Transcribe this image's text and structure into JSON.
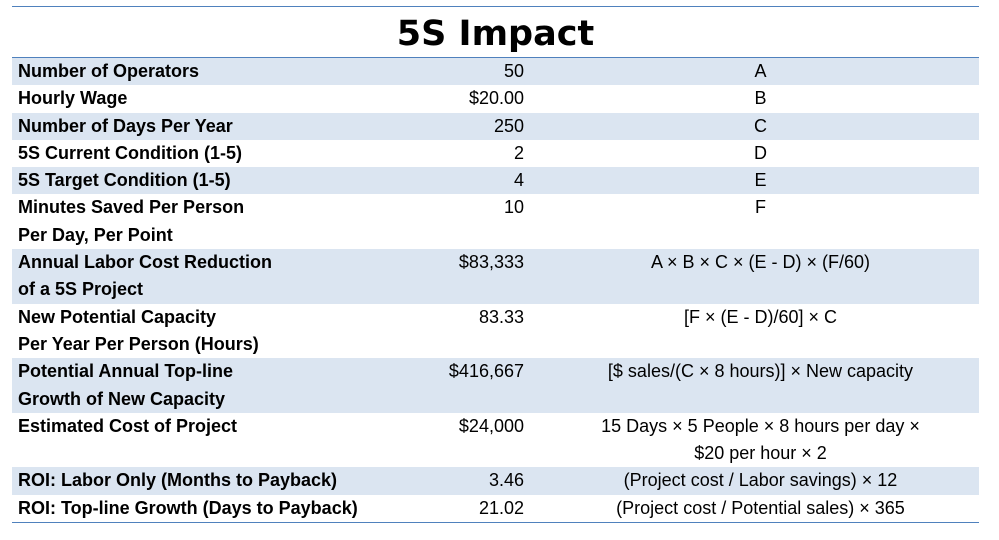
{
  "title": "5S Impact",
  "rows": [
    {
      "label1": "Number of Operators",
      "label2": "",
      "value": "50",
      "formula1": "A",
      "formula2": ""
    },
    {
      "label1": "Hourly Wage",
      "label2": "",
      "value": "$20.00",
      "formula1": "B",
      "formula2": ""
    },
    {
      "label1": "Number of Days Per Year",
      "label2": "",
      "value": "250",
      "formula1": "C",
      "formula2": ""
    },
    {
      "label1": "5S Current Condition (1-5)",
      "label2": "",
      "value": "2",
      "formula1": "D",
      "formula2": ""
    },
    {
      "label1": "5S Target Condition (1-5)",
      "label2": "",
      "value": "4",
      "formula1": "E",
      "formula2": ""
    },
    {
      "label1": "Minutes Saved Per Person",
      "label2": "Per Day, Per Point",
      "value": "10",
      "formula1": "F",
      "formula2": ""
    },
    {
      "label1": "Annual Labor Cost Reduction",
      "label2": "of a 5S Project",
      "value": "$83,333",
      "formula1": "A × B × C × (E - D) × (F/60)",
      "formula2": ""
    },
    {
      "label1": "New Potential Capacity",
      "label2": "Per Year Per Person (Hours)",
      "value": "83.33",
      "formula1": "[F × (E - D)/60] × C",
      "formula2": ""
    },
    {
      "label1": "Potential Annual Top-line",
      "label2": "Growth of New Capacity",
      "value": "$416,667",
      "formula1": "[$ sales/(C × 8 hours)] × New capacity",
      "formula2": ""
    },
    {
      "label1": "Estimated Cost of Project",
      "label2": "",
      "value": "$24,000",
      "formula1": "15 Days × 5 People × 8 hours per day ×",
      "formula2": "$20 per hour × 2"
    },
    {
      "label1": "ROI: Labor Only (Months to Payback)",
      "label2": "",
      "value": "3.46",
      "formula1": "(Project cost / Labor savings) × 12",
      "formula2": ""
    },
    {
      "label1": "ROI: Top-line Growth (Days to Payback)",
      "label2": "",
      "value": "21.02",
      "formula1": "(Project cost / Potential sales) × 365",
      "formula2": ""
    }
  ]
}
